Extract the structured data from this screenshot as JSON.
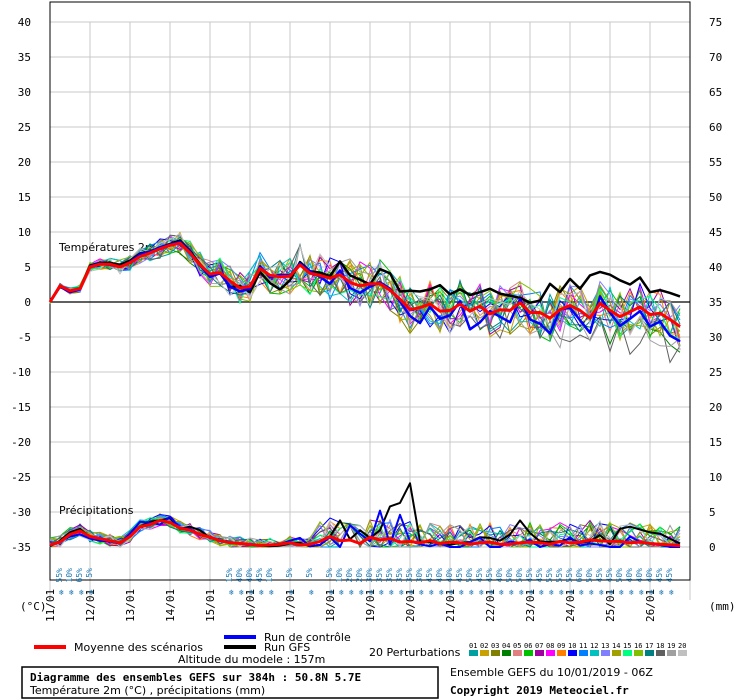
{
  "chart_data": {
    "type": "line",
    "title": "Diagramme des ensembles GEFS sur 384h : 50.8N 5.7E",
    "subtitle": "Température 2m (°C) , précipitations (mm)",
    "left_axis_unit": "(°C)",
    "right_axis_unit": "(mm)",
    "y_left_ticks": [
      40,
      35,
      30,
      25,
      20,
      15,
      10,
      5,
      0,
      -5,
      -10,
      -15,
      -20,
      -25,
      -30,
      -35
    ],
    "y_left_range": [
      -35,
      40
    ],
    "y_right_ticks": [
      75,
      70,
      65,
      60,
      55,
      50,
      45,
      40,
      35,
      30,
      25,
      20,
      15,
      10,
      5,
      0
    ],
    "y_right_range": [
      0,
      75
    ],
    "x_labels": [
      "11/01",
      "12/01",
      "13/01",
      "14/01",
      "15/01",
      "16/01",
      "17/01",
      "18/01",
      "19/01",
      "20/01",
      "21/01",
      "22/01",
      "23/01",
      "24/01",
      "25/01",
      "26/01"
    ],
    "x_steps": 64,
    "x_step_hours": 6,
    "temperature_panel_label": "Températures 2m",
    "precip_panel_label": "Précipitations",
    "precip_baseline_c": -35,
    "grid": true,
    "mean_temperature": [
      0,
      2.3,
      1.6,
      1.9,
      5,
      5.4,
      5.4,
      5,
      5.6,
      6.5,
      7,
      7.6,
      8.1,
      8.4,
      7,
      5.3,
      4,
      4.2,
      3,
      2,
      2.2,
      4.8,
      3.8,
      3.6,
      3.7,
      5.3,
      4.1,
      3.8,
      3.4,
      3.9,
      2.8,
      2.3,
      2.6,
      2.6,
      1.7,
      0.4,
      -1.1,
      -0.8,
      -0.3,
      -1.3,
      -1.2,
      -0.3,
      -1.3,
      -0.6,
      -1.7,
      -1.1,
      -1.2,
      -0.1,
      -1.5,
      -1.5,
      -2.3,
      -1.1,
      -0.5,
      -1.2,
      -2.3,
      -0.2,
      -1.2,
      -2.1,
      -1.4,
      -0.7,
      -1.8,
      -1.6,
      -2.5,
      -3.5
    ],
    "control_temperature": [
      0,
      2.2,
      1.4,
      1.8,
      5.1,
      5.5,
      5.3,
      5,
      5.7,
      6.8,
      7.2,
      7.8,
      8.2,
      8.6,
      7.2,
      5.2,
      3.6,
      4.1,
      2.2,
      1.5,
      1.9,
      5.1,
      3.5,
      3.9,
      3.8,
      5.5,
      4.4,
      3.6,
      2.6,
      4.5,
      2,
      1.3,
      2.2,
      2.8,
      1.9,
      0.1,
      -2,
      -3,
      -0.7,
      -2.4,
      -1.9,
      0.1,
      -3.9,
      -2.9,
      -1.3,
      -2.1,
      -2.9,
      0.4,
      -2.5,
      -3.1,
      -4.5,
      -1.1,
      -0.8,
      -2.6,
      -4.4,
      0.8,
      -1.5,
      -3.4,
      -2.4,
      -1.3,
      -3.5,
      -2.8,
      -4.8,
      -5.6
    ],
    "gfs_temperature": [
      0,
      2.3,
      1.5,
      1.9,
      5.2,
      5.6,
      5.6,
      5.3,
      5.9,
      6.9,
      7.2,
      7.8,
      8.3,
      8.8,
      7.3,
      5.4,
      3.8,
      4.2,
      2.1,
      2.3,
      1.4,
      4.3,
      2.7,
      1.8,
      3.1,
      5.7,
      4.4,
      4.2,
      3.7,
      5.8,
      3.8,
      3.2,
      2.5,
      4.7,
      4.1,
      1.5,
      1.6,
      1.5,
      1.8,
      2.4,
      1.1,
      1.8,
      1,
      1.4,
      1.9,
      1.2,
      0.9,
      0.6,
      -0.1,
      0.2,
      2.6,
      1.4,
      3.3,
      1.9,
      3.8,
      4.3,
      3.9,
      3.1,
      2.5,
      3.5,
      1.4,
      1.7,
      1.3,
      0.8
    ],
    "mean_precip": [
      0.3,
      0.7,
      1.8,
      2.3,
      1.5,
      1.2,
      0.9,
      0.6,
      1.5,
      2.9,
      3.2,
      3.8,
      3.5,
      2.7,
      2.4,
      1.8,
      1.4,
      0.9,
      0.6,
      0.5,
      0.4,
      0.2,
      0.3,
      0.4,
      0.6,
      0.3,
      0.4,
      0.8,
      1.5,
      0.9,
      1,
      0.5,
      1.4,
      1,
      1.2,
      0.7,
      0.8,
      0.6,
      0.9,
      0.5,
      0.7,
      0.6,
      0.4,
      0.6,
      0.7,
      0.4,
      0.4,
      0.6,
      0.7,
      0.6,
      0.4,
      0.8,
      0.6,
      0.7,
      1,
      0.9,
      0.8,
      0.8,
      0.6,
      0.7,
      0.5,
      0.4,
      0.3,
      0.2
    ],
    "control_precip": [
      0.2,
      0.8,
      1.5,
      1.8,
      1.2,
      0.9,
      0.8,
      0.5,
      1.9,
      3.6,
      3.5,
      3.2,
      4.3,
      2.7,
      2.6,
      1.7,
      1.5,
      0.9,
      0.6,
      0.5,
      0.4,
      0.2,
      0.3,
      0.4,
      0.9,
      1.3,
      0.1,
      0.3,
      1.4,
      0,
      3.1,
      1.9,
      0.8,
      5.2,
      0.4,
      4.6,
      0.8,
      0.4,
      0.1,
      0.5,
      0,
      0,
      0.7,
      1.3,
      0,
      0,
      0.8,
      0.5,
      1,
      0,
      0.4,
      0.2,
      1.4,
      0.2,
      0.5,
      0.3,
      0,
      0,
      1.5,
      0.7,
      0.5,
      0.3,
      0,
      0
    ],
    "gfs_precip": [
      0.1,
      0.9,
      2.1,
      2.6,
      1.4,
      1,
      0.8,
      0.5,
      1.6,
      2.9,
      3.6,
      3.8,
      4.1,
      2.6,
      2.9,
      2.4,
      1.3,
      0.9,
      0.6,
      0.5,
      0.4,
      0.2,
      0.1,
      0.2,
      0.5,
      0.6,
      0.1,
      0.3,
      1.5,
      3.8,
      1.1,
      2.4,
      1.3,
      2.4,
      5.8,
      6.3,
      9.1,
      0.8,
      0.7,
      0.5,
      0.3,
      0.6,
      0.7,
      1.4,
      1.3,
      0.9,
      1.8,
      3.8,
      2,
      0.8,
      0.7,
      0.8,
      1.2,
      0.6,
      0.8,
      1.7,
      0.4,
      2.6,
      2.9,
      2.5,
      2.1,
      1.9,
      1.2,
      0.5
    ],
    "percent_row1": [
      "55%",
      "10%",
      "65%",
      "5%",
      "",
      "",
      "",
      "",
      "",
      "",
      "",
      "",
      "",
      "",
      "",
      "",
      "",
      "15%",
      "40%",
      "40%",
      "45%",
      "10%",
      "",
      "5%",
      "",
      "5%",
      "",
      "5%",
      "10%",
      "20%",
      "20%",
      "30%",
      "35%",
      "35%",
      "35%",
      "35%",
      "30%",
      "45%",
      "40%",
      "40%",
      "45%",
      "50%",
      "45%",
      "45%",
      "40%",
      "50%",
      "50%",
      "45%",
      "45%",
      "55%",
      "55%",
      "55%",
      "60%",
      "50%",
      "45%",
      "45%",
      "50%",
      "40%",
      "40%",
      "40%",
      "45%",
      "45%",
      "",
      ""
    ],
    "legend": {
      "mean": "Moyenne des scénarios",
      "control": "Run de contrôle",
      "gfs": "Run GFS",
      "perturbations": "20 Perturbations",
      "perturbation_ids": [
        "01",
        "02",
        "03",
        "04",
        "05",
        "06",
        "07",
        "08",
        "09",
        "10",
        "11",
        "12",
        "13",
        "14",
        "15",
        "16",
        "17",
        "18",
        "19",
        "20"
      ],
      "perturbation_colors": [
        "#00a0a0",
        "#c8a000",
        "#808000",
        "#008000",
        "#e08080",
        "#00c000",
        "#a000a0",
        "#ff00ff",
        "#ff8000",
        "#0000ff",
        "#0080ff",
        "#00c0c0",
        "#8080ff",
        "#a0a000",
        "#00ff80",
        "#80c000",
        "#008080",
        "#606060",
        "#a0a0a0",
        "#c0c0c0"
      ]
    },
    "model_altitude": "Altitude du modele : 157m",
    "run_info": "Ensemble GEFS du 10/01/2019 - 06Z",
    "copyright": "Copyright 2019 Meteociel.fr"
  }
}
